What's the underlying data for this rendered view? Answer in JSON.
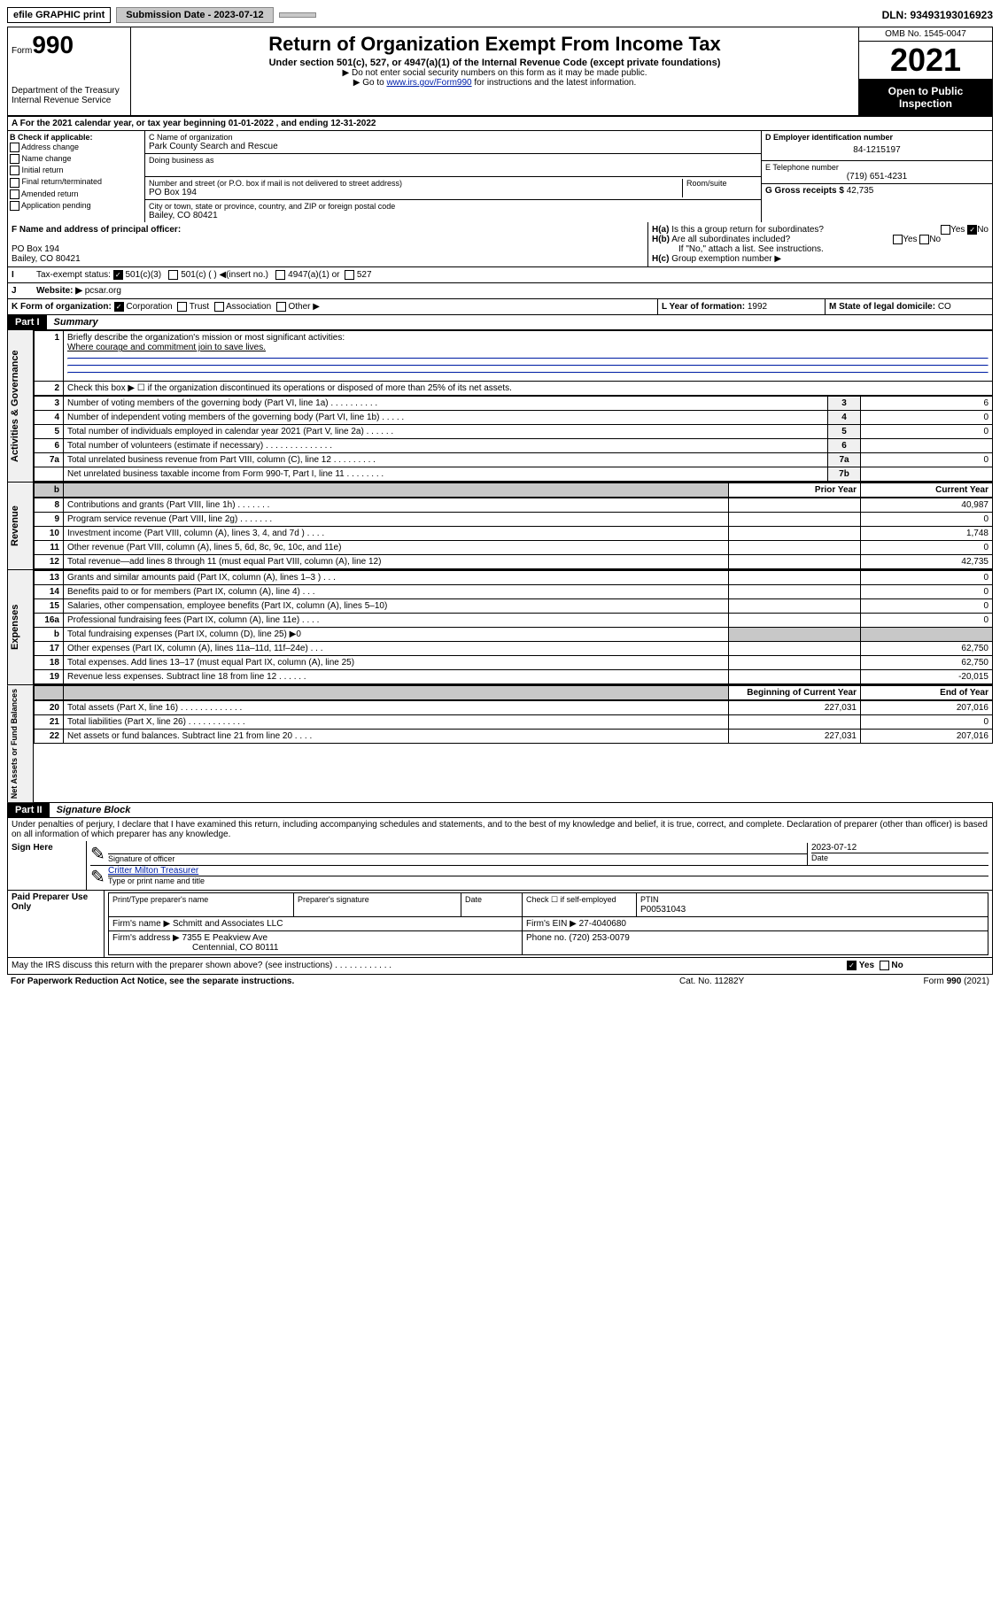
{
  "top": {
    "efile": "efile GRAPHIC print",
    "submission_label": "Submission Date - 2023-07-12",
    "dln_label": "DLN: 93493193016923"
  },
  "header": {
    "form_label": "Form",
    "form_no": "990",
    "dept": "Department of the Treasury",
    "irs": "Internal Revenue Service",
    "title": "Return of Organization Exempt From Income Tax",
    "subtitle": "Under section 501(c), 527, or 4947(a)(1) of the Internal Revenue Code (except private foundations)",
    "note1": "▶ Do not enter social security numbers on this form as it may be made public.",
    "note2_pre": "▶ Go to ",
    "note2_link": "www.irs.gov/Form990",
    "note2_post": " for instructions and the latest information.",
    "omb": "OMB No. 1545-0047",
    "year": "2021",
    "open": "Open to Public Inspection"
  },
  "row_a": "A For the 2021 calendar year, or tax year beginning 01-01-2022    , and ending 12-31-2022",
  "box_b": {
    "label": "B Check if applicable:",
    "items": [
      "Address change",
      "Name change",
      "Initial return",
      "Final return/terminated",
      "Amended return",
      "Application pending"
    ]
  },
  "box_c": {
    "label": "C Name of organization",
    "name": "Park County Search and Rescue",
    "dba_label": "Doing business as",
    "street_label": "Number and street (or P.O. box if mail is not delivered to street address)",
    "room_label": "Room/suite",
    "street": "PO Box 194",
    "city_label": "City or town, state or province, country, and ZIP or foreign postal code",
    "city": "Bailey, CO  80421"
  },
  "box_d": {
    "label": "D Employer identification number",
    "value": "84-1215197"
  },
  "box_e": {
    "label": "E Telephone number",
    "value": "(719) 651-4231"
  },
  "box_g": {
    "label": "G Gross receipts $",
    "value": "42,735"
  },
  "box_f": {
    "label": "F Name and address of principal officer:",
    "line1": "PO Box 194",
    "line2": "Bailey, CO  80421"
  },
  "box_h": {
    "a_label": "H(a)",
    "a_text": "Is this a group return for subordinates?",
    "b_label": "H(b)",
    "b_text": "Are all subordinates included?",
    "b_note": "If \"No,\" attach a list. See instructions.",
    "c_label": "H(c)",
    "c_text": "Group exemption number ▶"
  },
  "box_i": {
    "label": "I",
    "text": "Tax-exempt status:",
    "opt1": "501(c)(3)",
    "opt2": "501(c) (  ) ◀(insert no.)",
    "opt3": "4947(a)(1) or",
    "opt4": "527"
  },
  "box_j": {
    "label": "J",
    "text": "Website: ▶",
    "value": "pcsar.org"
  },
  "box_k": {
    "label": "K Form of organization:",
    "opts": [
      "Corporation",
      "Trust",
      "Association",
      "Other ▶"
    ]
  },
  "box_l": {
    "label": "L Year of formation:",
    "value": "1992"
  },
  "box_m": {
    "label": "M State of legal domicile:",
    "value": "CO"
  },
  "part1": {
    "header": "Part I",
    "title": "Summary",
    "line1_label": "1",
    "line1_text": "Briefly describe the organization's mission or most significant activities:",
    "line1_value": "Where courage and commitment join to save lives.",
    "line2_label": "2",
    "line2_text": "Check this box ▶ ☐ if the organization discontinued its operations or disposed of more than 25% of its net assets.",
    "rows_gov": [
      {
        "n": "3",
        "desc": "Number of voting members of the governing body (Part VI, line 1a)  .  .  .  .  .  .  .  .  .  .",
        "box": "3",
        "val": "6"
      },
      {
        "n": "4",
        "desc": "Number of independent voting members of the governing body (Part VI, line 1b)  .  .  .  .  .",
        "box": "4",
        "val": "0"
      },
      {
        "n": "5",
        "desc": "Total number of individuals employed in calendar year 2021 (Part V, line 2a)  .  .  .  .  .  .",
        "box": "5",
        "val": "0"
      },
      {
        "n": "6",
        "desc": "Total number of volunteers (estimate if necessary)  .  .  .  .  .  .  .  .  .  .  .  .  .  .",
        "box": "6",
        "val": ""
      },
      {
        "n": "7a",
        "desc": "Total unrelated business revenue from Part VIII, column (C), line 12  .  .  .  .  .  .  .  .  .",
        "box": "7a",
        "val": "0"
      },
      {
        "n": "",
        "desc": "Net unrelated business taxable income from Form 990-T, Part I, line 11  .  .  .  .  .  .  .  .",
        "box": "7b",
        "val": ""
      }
    ],
    "col_prior": "Prior Year",
    "col_current": "Current Year",
    "rows_rev": [
      {
        "n": "8",
        "desc": "Contributions and grants (Part VIII, line 1h)  .  .  .  .  .  .  .",
        "p": "",
        "c": "40,987"
      },
      {
        "n": "9",
        "desc": "Program service revenue (Part VIII, line 2g)  .  .  .  .  .  .  .",
        "p": "",
        "c": "0"
      },
      {
        "n": "10",
        "desc": "Investment income (Part VIII, column (A), lines 3, 4, and 7d )  .  .  .  .",
        "p": "",
        "c": "1,748"
      },
      {
        "n": "11",
        "desc": "Other revenue (Part VIII, column (A), lines 5, 6d, 8c, 9c, 10c, and 11e)",
        "p": "",
        "c": "0"
      },
      {
        "n": "12",
        "desc": "Total revenue—add lines 8 through 11 (must equal Part VIII, column (A), line 12)",
        "p": "",
        "c": "42,735"
      }
    ],
    "rows_exp": [
      {
        "n": "13",
        "desc": "Grants and similar amounts paid (Part IX, column (A), lines 1–3 )  .  .  .",
        "p": "",
        "c": "0"
      },
      {
        "n": "14",
        "desc": "Benefits paid to or for members (Part IX, column (A), line 4)  .  .  .",
        "p": "",
        "c": "0"
      },
      {
        "n": "15",
        "desc": "Salaries, other compensation, employee benefits (Part IX, column (A), lines 5–10)",
        "p": "",
        "c": "0"
      },
      {
        "n": "16a",
        "desc": "Professional fundraising fees (Part IX, column (A), line 11e)  .  .  .  .",
        "p": "",
        "c": "0"
      },
      {
        "n": "b",
        "desc": "Total fundraising expenses (Part IX, column (D), line 25) ▶0",
        "p": "gray",
        "c": "gray"
      },
      {
        "n": "17",
        "desc": "Other expenses (Part IX, column (A), lines 11a–11d, 11f–24e)  .  .  .",
        "p": "",
        "c": "62,750"
      },
      {
        "n": "18",
        "desc": "Total expenses. Add lines 13–17 (must equal Part IX, column (A), line 25)",
        "p": "",
        "c": "62,750"
      },
      {
        "n": "19",
        "desc": "Revenue less expenses. Subtract line 18 from line 12  .  .  .  .  .  .",
        "p": "",
        "c": "-20,015"
      }
    ],
    "col_begin": "Beginning of Current Year",
    "col_end": "End of Year",
    "rows_net": [
      {
        "n": "20",
        "desc": "Total assets (Part X, line 16)  .  .  .  .  .  .  .  .  .  .  .  .  .",
        "p": "227,031",
        "c": "207,016"
      },
      {
        "n": "21",
        "desc": "Total liabilities (Part X, line 26)  .  .  .  .  .  .  .  .  .  .  .  .",
        "p": "",
        "c": "0"
      },
      {
        "n": "22",
        "desc": "Net assets or fund balances. Subtract line 21 from line 20  .  .  .  .",
        "p": "227,031",
        "c": "207,016"
      }
    ],
    "vlabels": {
      "gov": "Activities & Governance",
      "rev": "Revenue",
      "exp": "Expenses",
      "net": "Net Assets or Fund Balances"
    }
  },
  "part2": {
    "header": "Part II",
    "title": "Signature Block",
    "declaration": "Under penalties of perjury, I declare that I have examined this return, including accompanying schedules and statements, and to the best of my knowledge and belief, it is true, correct, and complete. Declaration of preparer (other than officer) is based on all information of which preparer has any knowledge.",
    "sign_here": "Sign Here",
    "sig_officer": "Signature of officer",
    "date_label": "Date",
    "sig_date": "2023-07-12",
    "officer_name": "Critter Milton Treasurer",
    "type_name": "Type or print name and title",
    "paid": "Paid Preparer Use Only",
    "prep_name_label": "Print/Type preparer's name",
    "prep_sig_label": "Preparer's signature",
    "check_if": "Check ☐ if self-employed",
    "ptin_label": "PTIN",
    "ptin": "P00531043",
    "firm_name_label": "Firm's name    ▶",
    "firm_name": "Schmitt and Associates LLC",
    "firm_ein_label": "Firm's EIN ▶",
    "firm_ein": "27-4040680",
    "firm_addr_label": "Firm's address ▶",
    "firm_addr1": "7355 E Peakview Ave",
    "firm_addr2": "Centennial, CO  80111",
    "phone_label": "Phone no.",
    "phone": "(720) 253-0079",
    "may_irs": "May the IRS discuss this return with the preparer shown above? (see instructions)  .  .  .  .  .  .  .  .  .  .  .  .",
    "yes": "Yes",
    "no": "No"
  },
  "footer": {
    "left": "For Paperwork Reduction Act Notice, see the separate instructions.",
    "mid": "Cat. No. 11282Y",
    "right": "Form 990 (2021)"
  }
}
